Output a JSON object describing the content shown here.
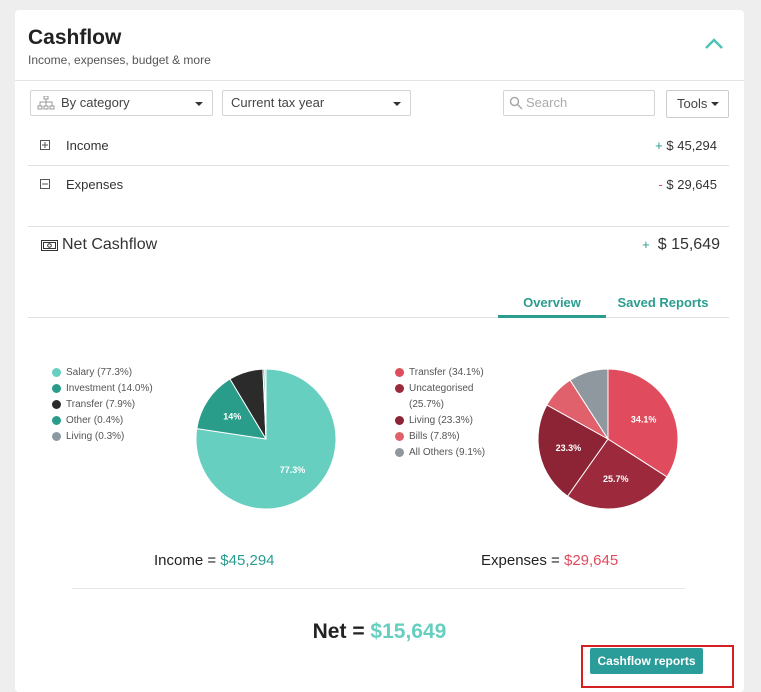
{
  "header": {
    "title": "Cashflow",
    "subtitle": "Income, expenses, budget & more"
  },
  "filters": {
    "group_by": "By category",
    "period": "Current tax year",
    "search_placeholder": "Search",
    "tools_label": "Tools"
  },
  "rows": [
    {
      "label": "Income",
      "sign": "+",
      "amount": "$ 45,294"
    },
    {
      "label": "Expenses",
      "sign": "-",
      "amount": "$ 29,645"
    }
  ],
  "net": {
    "label": "Net Cashflow",
    "sign": "+",
    "amount": "$ 15,649"
  },
  "tabs": [
    "Overview",
    "Saved Reports"
  ],
  "income_chart": {
    "legend": [
      "Salary (77.3%)",
      "Investment (14.0%)",
      "Transfer (7.9%)",
      "Other (0.4%)",
      "Living (0.3%)"
    ],
    "slice_values": [
      77.3,
      14.0,
      7.9,
      0.4,
      0.3
    ],
    "slice_labels": [
      "77.3%",
      "14%",
      "",
      "",
      ""
    ],
    "colors": [
      "#66cfc0",
      "#2a9d8a",
      "#2b2b2b",
      "#2a9d8a",
      "#8a9aa0"
    ],
    "total_label": "Income =",
    "total_value": "$45,294"
  },
  "expense_chart": {
    "legend": [
      "Transfer (34.1%)",
      "Uncategorised (25.7%)",
      "Living (23.3%)",
      "Bills (7.8%)",
      "All Others (9.1%)"
    ],
    "slice_values": [
      34.1,
      25.7,
      23.3,
      7.8,
      9.1
    ],
    "slice_labels": [
      "34.1%",
      "25.7%",
      "23.3%",
      "",
      ""
    ],
    "colors": [
      "#e04b5e",
      "#9c2a3c",
      "#8c2435",
      "#e0606c",
      "#8f989f"
    ],
    "total_label": "Expenses =",
    "total_value": "$29,645"
  },
  "net_total": {
    "label": "Net =",
    "value": "$15,649"
  },
  "report_button": "Cashflow reports",
  "colors": {
    "teal": "#2a9d8f",
    "red": "#e04b5e",
    "net_green": "#66cfc0"
  }
}
